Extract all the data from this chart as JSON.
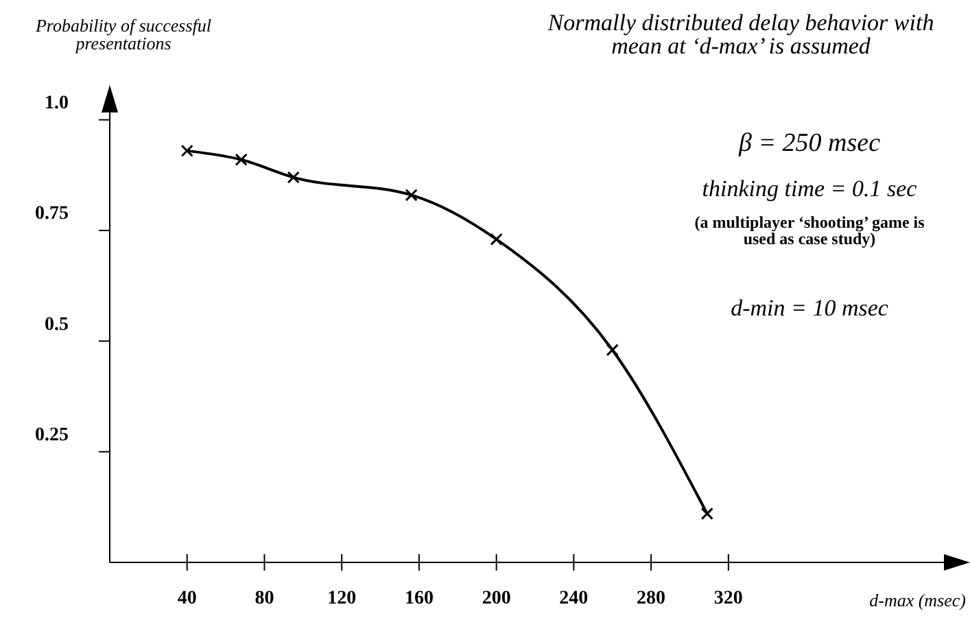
{
  "chart_data": {
    "type": "line",
    "title": "Normally distributed delay behavior with mean at ‘d-max’ is assumed",
    "xlabel": "d-max (msec)",
    "ylabel": "Probability of successful presentations",
    "annotations": [
      "β = 250 msec",
      "thinking time = 0.1 sec",
      "(a multiplayer ‘shooting’ game is used as case study)",
      "d-min = 10 msec"
    ],
    "x": [
      40,
      68,
      95,
      156,
      200,
      260,
      309
    ],
    "series": [
      {
        "color": "#000000",
        "values": [
          0.93,
          0.91,
          0.87,
          0.83,
          0.73,
          0.48,
          0.11
        ]
      }
    ],
    "xlim": [
      0,
      440
    ],
    "ylim": [
      0,
      1.06
    ],
    "xticks": [
      40,
      80,
      120,
      160,
      200,
      240,
      280,
      320
    ],
    "yticks": [
      {
        "value": 1,
        "label": "1.0"
      },
      0.75,
      0.5,
      0.25
    ],
    "marker": "cross",
    "line_style": "solid",
    "grid": false
  }
}
